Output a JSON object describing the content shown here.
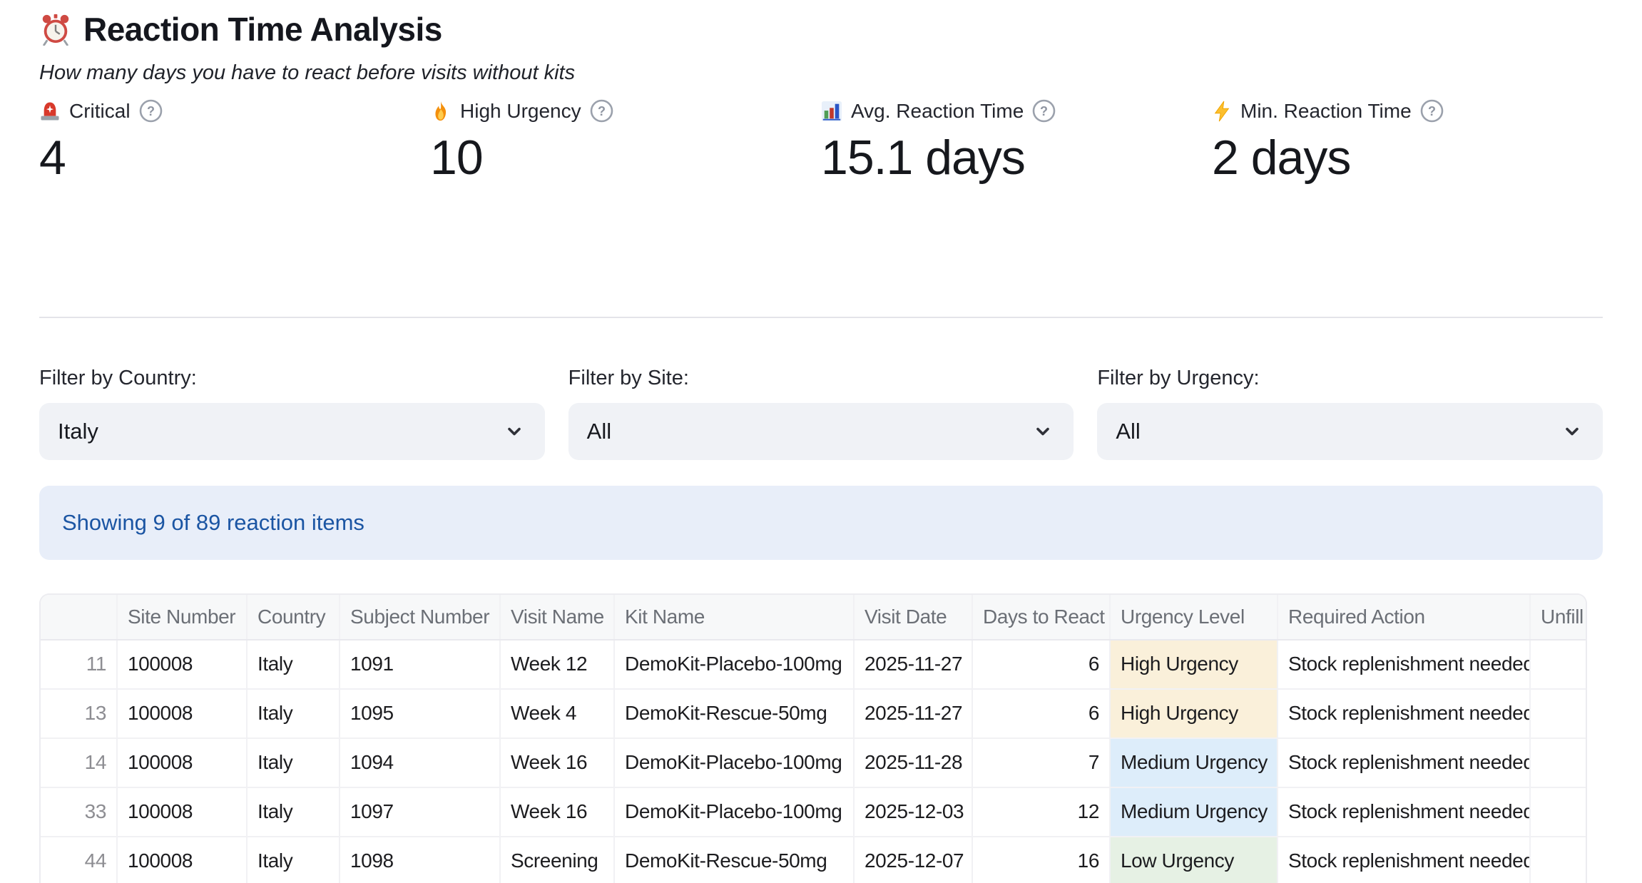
{
  "header": {
    "icon": "alarm-clock-icon",
    "title": "Reaction Time Analysis",
    "subtitle": "How many days you have to react before visits without kits"
  },
  "metrics": [
    {
      "icon": "siren-icon",
      "label": "Critical",
      "value": "4",
      "help_icon": "help-icon"
    },
    {
      "icon": "fire-icon",
      "label": "High Urgency",
      "value": "10",
      "help_icon": "help-icon"
    },
    {
      "icon": "bar-chart-icon",
      "label": "Avg. Reaction Time",
      "value": "15.1 days",
      "help_icon": "help-icon"
    },
    {
      "icon": "lightning-icon",
      "label": "Min. Reaction Time",
      "value": "2 days",
      "help_icon": "help-icon"
    }
  ],
  "filters": [
    {
      "label": "Filter by Country:",
      "value": "Italy",
      "chevron_icon": "chevron-down-icon"
    },
    {
      "label": "Filter by Site:",
      "value": "All",
      "chevron_icon": "chevron-down-icon"
    },
    {
      "label": "Filter by Urgency:",
      "value": "All",
      "chevron_icon": "chevron-down-icon"
    }
  ],
  "info_banner": {
    "text": "Showing 9 of 89 reaction items",
    "bg": "#e8eef9",
    "color": "#1b55a3"
  },
  "table": {
    "columns": [
      "",
      "Site Number",
      "Country",
      "Subject Number",
      "Visit Name",
      "Kit Name",
      "Visit Date",
      "Days to React",
      "Urgency Level",
      "Required Action",
      "Unfill"
    ],
    "rows": [
      [
        "11",
        "100008",
        "Italy",
        "1091",
        "Week 12",
        "DemoKit-Placebo-100mg",
        "2025-11-27",
        "6",
        "High Urgency",
        "Stock replenishment needed",
        ""
      ],
      [
        "13",
        "100008",
        "Italy",
        "1095",
        "Week 4",
        "DemoKit-Rescue-50mg",
        "2025-11-27",
        "6",
        "High Urgency",
        "Stock replenishment needed",
        ""
      ],
      [
        "14",
        "100008",
        "Italy",
        "1094",
        "Week 16",
        "DemoKit-Placebo-100mg",
        "2025-11-28",
        "7",
        "Medium Urgency",
        "Stock replenishment needed",
        ""
      ],
      [
        "33",
        "100008",
        "Italy",
        "1097",
        "Week 16",
        "DemoKit-Placebo-100mg",
        "2025-12-03",
        "12",
        "Medium Urgency",
        "Stock replenishment needed",
        ""
      ],
      [
        "44",
        "100008",
        "Italy",
        "1098",
        "Screening",
        "DemoKit-Rescue-50mg",
        "2025-12-07",
        "16",
        "Low Urgency",
        "Stock replenishment needed",
        ""
      ]
    ],
    "urgency_colors": {
      "High Urgency": "#faf0da",
      "Medium Urgency": "#ddedfa",
      "Low Urgency": "#e6f1e4"
    }
  }
}
